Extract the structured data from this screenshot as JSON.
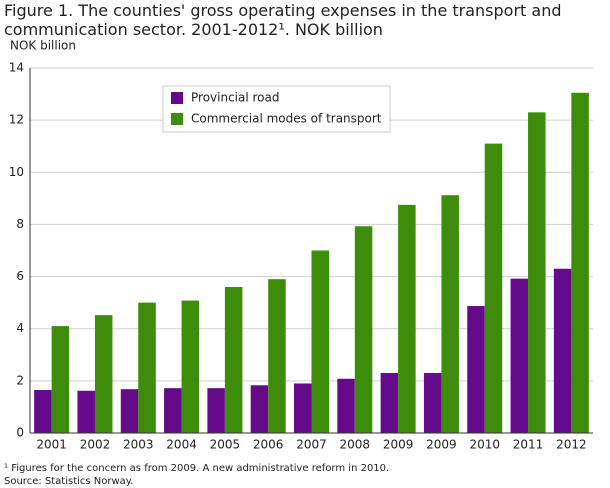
{
  "chart_data": {
    "type": "bar",
    "title": "Figure 1. The counties' gross operating expenses in the transport and communication sector. 2001-2012¹. NOK billion",
    "y_label": "NOK billion",
    "categories": [
      "2001",
      "2002",
      "2003",
      "2004",
      "2005",
      "2006",
      "2007",
      "2008",
      "2009",
      "2009",
      "2010",
      "2011",
      "2012"
    ],
    "series": [
      {
        "name": "Provincial road",
        "color": "#660a8c",
        "values": [
          1.65,
          1.62,
          1.68,
          1.72,
          1.72,
          1.83,
          1.9,
          2.08,
          2.3,
          2.3,
          4.87,
          5.92,
          6.3
        ]
      },
      {
        "name": "Commercial modes of transport",
        "color": "#3d8c0a",
        "values": [
          4.1,
          4.52,
          5.0,
          5.08,
          5.6,
          5.9,
          7.0,
          7.93,
          8.75,
          9.12,
          11.1,
          12.3,
          13.05
        ]
      }
    ],
    "ylim": [
      0,
      14
    ],
    "yticks": [
      0,
      2,
      4,
      6,
      8,
      10,
      12,
      14
    ],
    "grid": true,
    "legend": "top-left",
    "footnotes": [
      "¹ Figures for the concern as from 2009.  A new administrative reform in 2010.",
      "Source: Statistics Norway."
    ]
  }
}
